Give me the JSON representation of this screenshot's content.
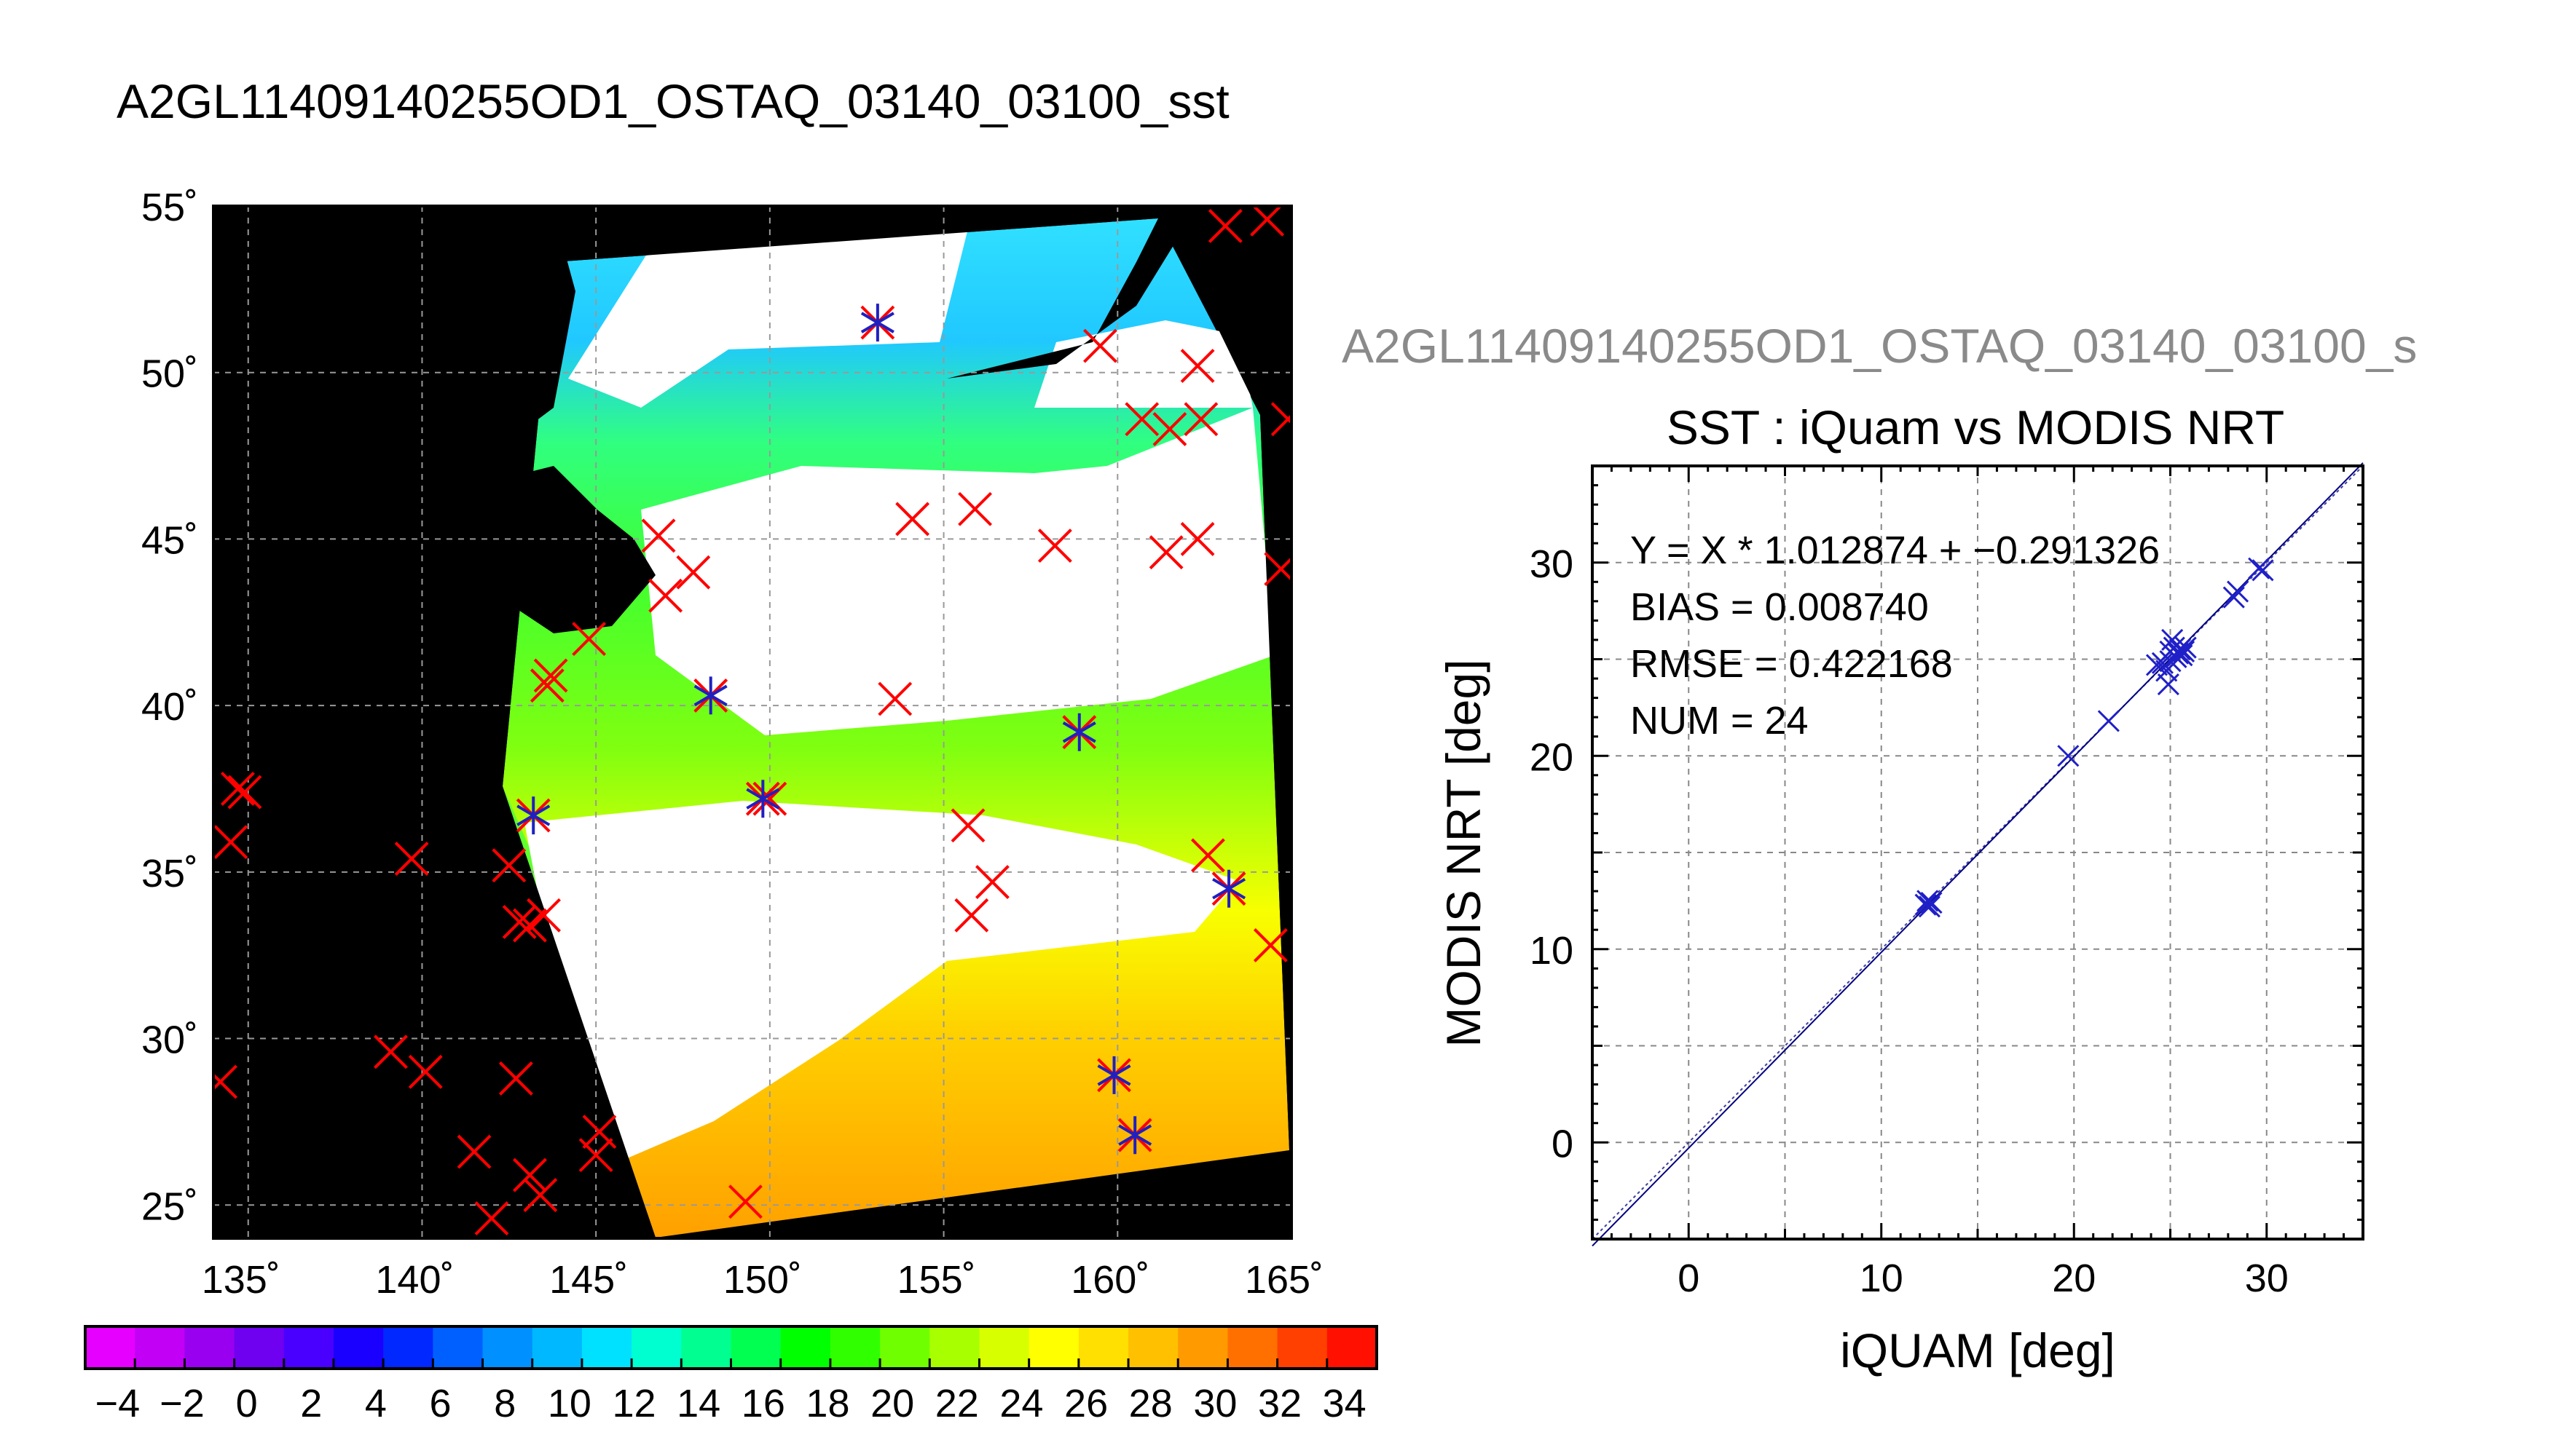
{
  "map_panel": {
    "title": "A2GL11409140255OD1_OSTAQ_03140_03100_sst",
    "lon_tick_labels": [
      "135˚",
      "140˚",
      "145˚",
      "150˚",
      "155˚",
      "160˚",
      "165˚"
    ],
    "lat_tick_labels": [
      "55˚",
      "50˚",
      "45˚",
      "40˚",
      "35˚",
      "30˚",
      "25˚"
    ],
    "lon_range": [
      134,
      165
    ],
    "lat_range": [
      24,
      55
    ],
    "grid": true,
    "colorbar": {
      "labels": [
        "−4",
        "−2",
        "0",
        "2",
        "4",
        "6",
        "8",
        "10",
        "12",
        "14",
        "16",
        "18",
        "20",
        "22",
        "24",
        "26",
        "28",
        "30",
        "32",
        "34"
      ],
      "range": [
        -5,
        35
      ],
      "colors": [
        "#e600ff",
        "#c200f5",
        "#9a00f0",
        "#7000f0",
        "#4a00ff",
        "#1a00ff",
        "#0028ff",
        "#0060ff",
        "#0090ff",
        "#00b8ff",
        "#00e0ff",
        "#00ffd0",
        "#00ff90",
        "#00ff50",
        "#00ff00",
        "#30ff00",
        "#70ff00",
        "#a8ff00",
        "#d8ff00",
        "#ffff00",
        "#ffe000",
        "#ffc000",
        "#ff9a00",
        "#ff7000",
        "#ff4000",
        "#ff1000"
      ]
    },
    "buoy_cross_color": "#ff0000",
    "matchup_star_color": "#2020c0",
    "buoys": [
      [
        134.2,
        28.7
      ],
      [
        134.5,
        35.9
      ],
      [
        134.7,
        37.5
      ],
      [
        134.9,
        37.4
      ],
      [
        139.1,
        29.6
      ],
      [
        140.1,
        29.0
      ],
      [
        139.7,
        35.4
      ],
      [
        141.5,
        26.6
      ],
      [
        142.0,
        24.6
      ],
      [
        142.5,
        35.2
      ],
      [
        142.7,
        28.8
      ],
      [
        142.8,
        33.5
      ],
      [
        143.1,
        33.4
      ],
      [
        143.1,
        25.9
      ],
      [
        143.2,
        36.7
      ],
      [
        143.4,
        25.3
      ],
      [
        143.5,
        33.7
      ],
      [
        143.6,
        40.6
      ],
      [
        143.7,
        40.9
      ],
      [
        144.8,
        42.0
      ],
      [
        145.0,
        26.5
      ],
      [
        145.1,
        27.2
      ],
      [
        146.8,
        45.1
      ],
      [
        147.0,
        43.3
      ],
      [
        147.8,
        44.0
      ],
      [
        148.3,
        40.3
      ],
      [
        149.3,
        25.1
      ],
      [
        149.8,
        37.2
      ],
      [
        150.0,
        37.2
      ],
      [
        153.1,
        51.5
      ],
      [
        153.6,
        40.2
      ],
      [
        154.1,
        45.6
      ],
      [
        155.7,
        36.4
      ],
      [
        155.8,
        33.7
      ],
      [
        155.9,
        45.9
      ],
      [
        156.4,
        34.7
      ],
      [
        158.2,
        44.8
      ],
      [
        158.9,
        39.2
      ],
      [
        159.5,
        50.8
      ],
      [
        159.9,
        28.9
      ],
      [
        160.5,
        27.1
      ],
      [
        160.7,
        48.6
      ],
      [
        161.4,
        44.6
      ],
      [
        161.5,
        48.3
      ],
      [
        162.3,
        50.2
      ],
      [
        162.4,
        48.6
      ],
      [
        162.3,
        45.0
      ],
      [
        162.6,
        35.5
      ],
      [
        163.2,
        34.5
      ],
      [
        163.1,
        54.4
      ],
      [
        164.3,
        54.6
      ],
      [
        164.4,
        32.8
      ],
      [
        164.7,
        44.1
      ],
      [
        164.9,
        48.6
      ]
    ],
    "matchups": [
      [
        153.1,
        51.5
      ],
      [
        148.3,
        40.3
      ],
      [
        149.8,
        37.2
      ],
      [
        158.9,
        39.2
      ],
      [
        143.2,
        36.7
      ],
      [
        163.2,
        34.5
      ],
      [
        159.9,
        28.9
      ],
      [
        160.5,
        27.1
      ]
    ]
  },
  "scatter_panel": {
    "overlay_title": "A2GL11409140255OD1_OSTAQ_03140_03100_s",
    "chart_title": "SST : iQuam vs MODIS NRT",
    "stats": [
      "Y = X * 1.012874 + −0.291326",
      "BIAS = 0.008740",
      "RMSE = 0.422168",
      "NUM = 24"
    ],
    "xlabel": "iQUAM [deg]",
    "ylabel": "MODIS NRT [deg]"
  },
  "chart_data": [
    {
      "type": "scatter",
      "title": "SST : iQuam vs MODIS NRT",
      "xlabel": "iQUAM [deg]",
      "ylabel": "MODIS NRT [deg]",
      "xlim": [
        -5,
        35
      ],
      "ylim": [
        -5,
        35
      ],
      "xticks": [
        0,
        10,
        20,
        30
      ],
      "yticks": [
        0,
        10,
        20,
        30
      ],
      "grid": true,
      "marker_color": "#2020c8",
      "points": [
        [
          12.3,
          12.3
        ],
        [
          12.5,
          12.2
        ],
        [
          12.4,
          12.5
        ],
        [
          19.7,
          20.0
        ],
        [
          21.8,
          21.8
        ],
        [
          24.3,
          24.7
        ],
        [
          24.6,
          24.8
        ],
        [
          24.8,
          24.4
        ],
        [
          24.9,
          23.7
        ],
        [
          25.0,
          25.4
        ],
        [
          25.1,
          26.0
        ],
        [
          25.2,
          25.6
        ],
        [
          25.3,
          25.1
        ],
        [
          25.4,
          25.3
        ],
        [
          25.5,
          25.5
        ],
        [
          25.6,
          25.2
        ],
        [
          25.7,
          25.4
        ],
        [
          28.3,
          28.2
        ],
        [
          28.5,
          28.5
        ],
        [
          29.6,
          29.7
        ],
        [
          29.8,
          29.6
        ],
        [
          12.6,
          12.4
        ],
        [
          25.0,
          24.9
        ],
        [
          25.8,
          25.6
        ]
      ],
      "fit": {
        "slope": 1.012874,
        "intercept": -0.291326
      }
    }
  ]
}
